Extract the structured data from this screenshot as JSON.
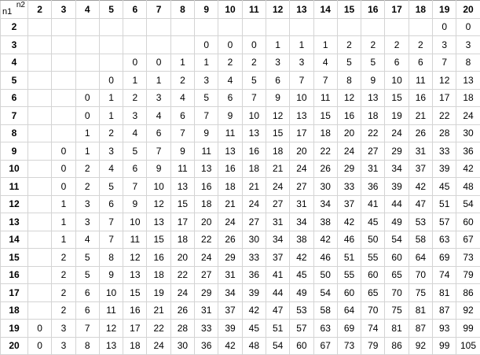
{
  "corner": {
    "row_var": "n1",
    "col_var": "n2"
  },
  "col_headers": [
    "2",
    "3",
    "4",
    "5",
    "6",
    "7",
    "8",
    "9",
    "10",
    "11",
    "12",
    "13",
    "14",
    "15",
    "16",
    "17",
    "18",
    "19",
    "20"
  ],
  "rows": [
    {
      "label": "2",
      "cells": [
        "",
        "",
        "",
        "",
        "",
        "",
        "",
        "",
        "",
        "",
        "",
        "",
        "",
        "",
        "",
        "",
        "",
        "0",
        "0"
      ]
    },
    {
      "label": "3",
      "cells": [
        "",
        "",
        "",
        "",
        "",
        "",
        "",
        "0",
        "0",
        "0",
        "1",
        "1",
        "1",
        "2",
        "2",
        "2",
        "2",
        "3",
        "3"
      ]
    },
    {
      "label": "4",
      "cells": [
        "",
        "",
        "",
        "",
        "0",
        "0",
        "1",
        "1",
        "2",
        "2",
        "3",
        "3",
        "4",
        "5",
        "5",
        "6",
        "6",
        "7",
        "8"
      ]
    },
    {
      "label": "5",
      "cells": [
        "",
        "",
        "",
        "0",
        "1",
        "1",
        "2",
        "3",
        "4",
        "5",
        "6",
        "7",
        "7",
        "8",
        "9",
        "10",
        "11",
        "12",
        "13"
      ]
    },
    {
      "label": "6",
      "cells": [
        "",
        "",
        "0",
        "1",
        "2",
        "3",
        "4",
        "5",
        "6",
        "7",
        "9",
        "10",
        "11",
        "12",
        "13",
        "15",
        "16",
        "17",
        "18"
      ]
    },
    {
      "label": "7",
      "cells": [
        "",
        "",
        "0",
        "1",
        "3",
        "4",
        "6",
        "7",
        "9",
        "10",
        "12",
        "13",
        "15",
        "16",
        "18",
        "19",
        "21",
        "22",
        "24"
      ]
    },
    {
      "label": "8",
      "cells": [
        "",
        "",
        "1",
        "2",
        "4",
        "6",
        "7",
        "9",
        "11",
        "13",
        "15",
        "17",
        "18",
        "20",
        "22",
        "24",
        "26",
        "28",
        "30"
      ]
    },
    {
      "label": "9",
      "cells": [
        "",
        "0",
        "1",
        "3",
        "5",
        "7",
        "9",
        "11",
        "13",
        "16",
        "18",
        "20",
        "22",
        "24",
        "27",
        "29",
        "31",
        "33",
        "36"
      ]
    },
    {
      "label": "10",
      "cells": [
        "",
        "0",
        "2",
        "4",
        "6",
        "9",
        "11",
        "13",
        "16",
        "18",
        "21",
        "24",
        "26",
        "29",
        "31",
        "34",
        "37",
        "39",
        "42"
      ]
    },
    {
      "label": "11",
      "cells": [
        "",
        "0",
        "2",
        "5",
        "7",
        "10",
        "13",
        "16",
        "18",
        "21",
        "24",
        "27",
        "30",
        "33",
        "36",
        "39",
        "42",
        "45",
        "48"
      ]
    },
    {
      "label": "12",
      "cells": [
        "",
        "1",
        "3",
        "6",
        "9",
        "12",
        "15",
        "18",
        "21",
        "24",
        "27",
        "31",
        "34",
        "37",
        "41",
        "44",
        "47",
        "51",
        "54"
      ]
    },
    {
      "label": "13",
      "cells": [
        "",
        "1",
        "3",
        "7",
        "10",
        "13",
        "17",
        "20",
        "24",
        "27",
        "31",
        "34",
        "38",
        "42",
        "45",
        "49",
        "53",
        "57",
        "60"
      ]
    },
    {
      "label": "14",
      "cells": [
        "",
        "1",
        "4",
        "7",
        "11",
        "15",
        "18",
        "22",
        "26",
        "30",
        "34",
        "38",
        "42",
        "46",
        "50",
        "54",
        "58",
        "63",
        "67"
      ]
    },
    {
      "label": "15",
      "cells": [
        "",
        "2",
        "5",
        "8",
        "12",
        "16",
        "20",
        "24",
        "29",
        "33",
        "37",
        "42",
        "46",
        "51",
        "55",
        "60",
        "64",
        "69",
        "73"
      ]
    },
    {
      "label": "16",
      "cells": [
        "",
        "2",
        "5",
        "9",
        "13",
        "18",
        "22",
        "27",
        "31",
        "36",
        "41",
        "45",
        "50",
        "55",
        "60",
        "65",
        "70",
        "74",
        "79"
      ]
    },
    {
      "label": "17",
      "cells": [
        "",
        "2",
        "6",
        "10",
        "15",
        "19",
        "24",
        "29",
        "34",
        "39",
        "44",
        "49",
        "54",
        "60",
        "65",
        "70",
        "75",
        "81",
        "86"
      ]
    },
    {
      "label": "18",
      "cells": [
        "",
        "2",
        "6",
        "11",
        "16",
        "21",
        "26",
        "31",
        "37",
        "42",
        "47",
        "53",
        "58",
        "64",
        "70",
        "75",
        "81",
        "87",
        "92"
      ]
    },
    {
      "label": "19",
      "cells": [
        "0",
        "3",
        "7",
        "12",
        "17",
        "22",
        "28",
        "33",
        "39",
        "45",
        "51",
        "57",
        "63",
        "69",
        "74",
        "81",
        "87",
        "93",
        "99"
      ]
    },
    {
      "label": "20",
      "cells": [
        "0",
        "3",
        "8",
        "13",
        "18",
        "24",
        "30",
        "36",
        "42",
        "48",
        "54",
        "60",
        "67",
        "73",
        "79",
        "86",
        "92",
        "99",
        "105"
      ]
    }
  ]
}
